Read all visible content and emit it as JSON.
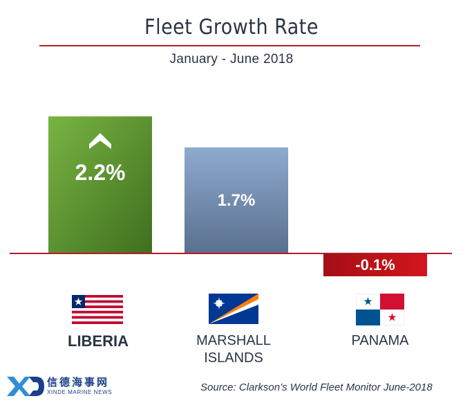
{
  "header": {
    "title": "Fleet Growth Rate",
    "subtitle": "January - June 2018"
  },
  "chart_data": {
    "type": "bar",
    "title": "Fleet Growth Rate",
    "subtitle": "January - June 2018",
    "categories": [
      "LIBERIA",
      "MARSHALL ISLANDS",
      "PANAMA"
    ],
    "values": [
      2.2,
      1.7,
      -0.1
    ],
    "labels": [
      "2.2%",
      "1.7%",
      "-0.1%"
    ],
    "unit": "%",
    "ylim": [
      -0.6,
      3.4
    ],
    "grid": false,
    "colors": [
      "#5e9a33",
      "#7f9bbd",
      "#c2141c"
    ],
    "baseline_color": "#b01e2a",
    "highlight": {
      "category": "LIBERIA",
      "icon": "chevron-up-icon"
    }
  },
  "countries": [
    {
      "line1": "LIBERIA",
      "line2": "",
      "flag": "liberia-flag"
    },
    {
      "line1": "MARSHALL",
      "line2": "ISLANDS",
      "flag": "marshall-islands-flag"
    },
    {
      "line1": "PANAMA",
      "line2": "",
      "flag": "panama-flag"
    }
  ],
  "footer": {
    "source": "Source: Clarkson’s World Fleet Monitor June-2018",
    "logo_cn": "信德海事网",
    "logo_en": "XINDE MARINE NEWS"
  }
}
